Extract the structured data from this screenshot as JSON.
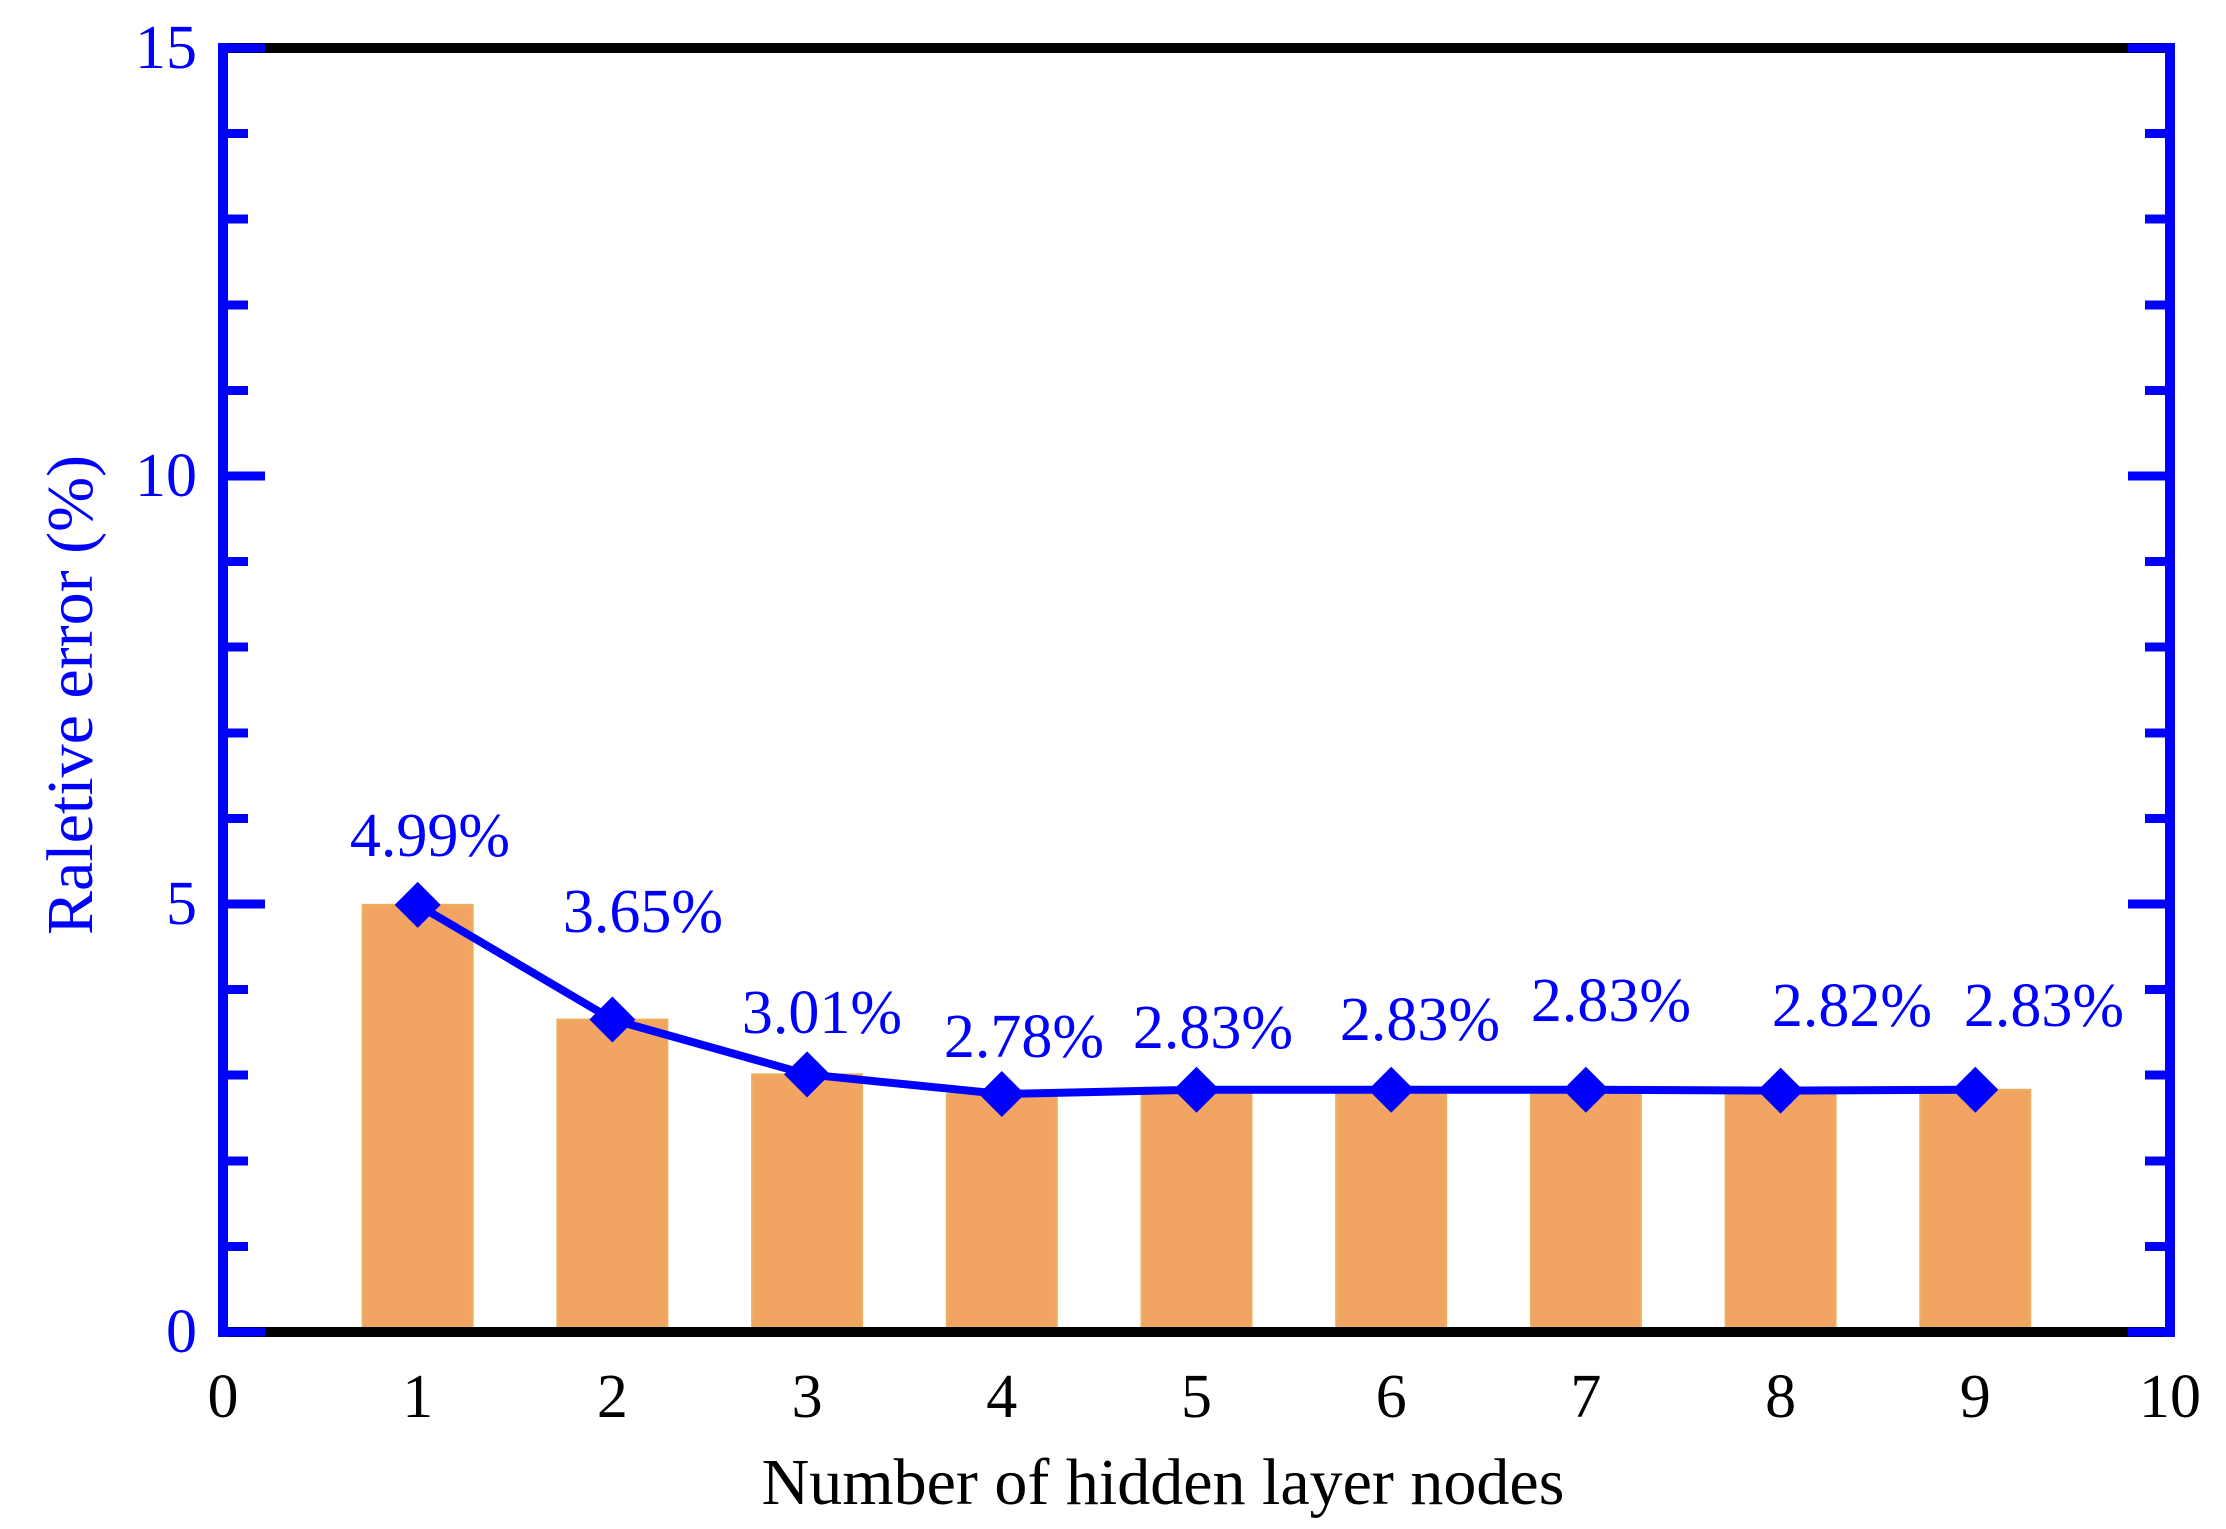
{
  "chart_data": {
    "type": "bar",
    "subtype": "bar-with-line-overlay",
    "title": "",
    "xlabel": "Number of hidden layer nodes",
    "ylabel": "Raletive error (%)",
    "xlim": [
      0,
      10
    ],
    "ylim": [
      0,
      15
    ],
    "x_ticks": [
      0,
      1,
      2,
      3,
      4,
      5,
      6,
      7,
      8,
      9,
      10
    ],
    "y_ticks_major": [
      0,
      5,
      10,
      15
    ],
    "y_tick_minor_step": 1,
    "grid": false,
    "legend": null,
    "categories": [
      1,
      2,
      3,
      4,
      5,
      6,
      7,
      8,
      9
    ],
    "series": [
      {
        "name": "relative-error-bars",
        "type": "bar",
        "values": [
          4.99,
          3.65,
          3.01,
          2.78,
          2.83,
          2.83,
          2.83,
          2.82,
          2.83
        ]
      },
      {
        "name": "relative-error-line",
        "type": "line",
        "marker": "diamond",
        "values": [
          4.99,
          3.65,
          3.01,
          2.78,
          2.83,
          2.83,
          2.83,
          2.82,
          2.83
        ]
      }
    ],
    "point_labels": [
      "4.99%",
      "3.65%",
      "3.01%",
      "2.78%",
      "2.83%",
      "2.83%",
      "2.83%",
      "2.82%",
      "2.83%"
    ],
    "colors": {
      "bar_fill": "#F2A562",
      "bar_edge": "#EAB05C",
      "line": "#0000FF",
      "marker": "#0000FF",
      "y_axis": "#0000FF",
      "x_axis": "#000000",
      "y_tick_label": "#0000FF",
      "x_tick_label": "#000000",
      "point_label": "#0000FF",
      "background": "#FFFFFF"
    }
  }
}
